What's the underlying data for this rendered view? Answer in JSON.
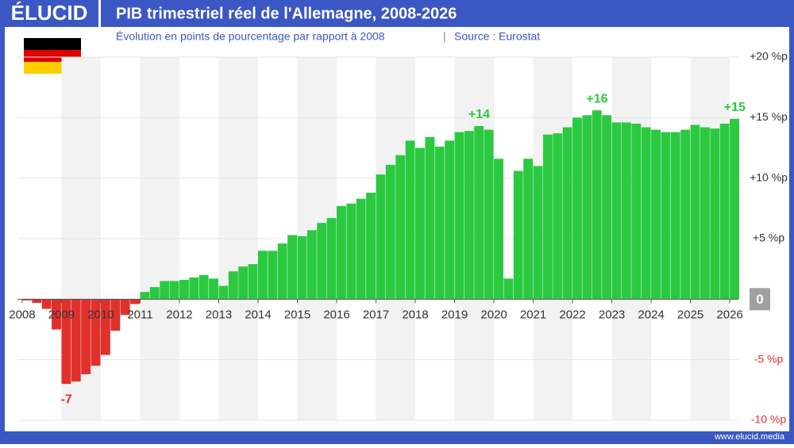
{
  "header": {
    "brand": "ÉLUCID"
  },
  "footer": {
    "website": "www.elucid.media"
  },
  "chart_data": {
    "type": "bar",
    "title": "PIB trimestriel réel de l'Allemagne, 2008-2026",
    "subtitle": "Évolution en points de pourcentage par rapport à 2008",
    "source": "Source : Eurostat",
    "x": [
      2008,
      2008.25,
      2008.5,
      2008.75,
      2009,
      2009.25,
      2009.5,
      2009.75,
      2010,
      2010.25,
      2010.5,
      2010.75,
      2011,
      2011.25,
      2011.5,
      2011.75,
      2012,
      2012.25,
      2012.5,
      2012.75,
      2013,
      2013.25,
      2013.5,
      2013.75,
      2014,
      2014.25,
      2014.5,
      2014.75,
      2015,
      2015.25,
      2015.5,
      2015.75,
      2016,
      2016.25,
      2016.5,
      2016.75,
      2017,
      2017.25,
      2017.5,
      2017.75,
      2018,
      2018.25,
      2018.5,
      2018.75,
      2019,
      2019.25,
      2019.5,
      2019.75,
      2020,
      2020.25,
      2020.5,
      2020.75,
      2021,
      2021.25,
      2021.5,
      2021.75,
      2022,
      2022.25,
      2022.5,
      2022.75,
      2023,
      2023.25,
      2023.5,
      2023.75,
      2024,
      2024.25,
      2024.5,
      2024.75,
      2025,
      2025.25,
      2025.5,
      2025.75,
      2026
    ],
    "values": [
      -0.1,
      -0.3,
      -0.8,
      -2.5,
      -7.0,
      -6.8,
      -6.2,
      -5.5,
      -4.6,
      -2.6,
      -1.3,
      -0.4,
      0.6,
      1.0,
      1.5,
      1.5,
      1.6,
      1.8,
      2.0,
      1.7,
      1.1,
      2.3,
      2.7,
      2.9,
      4.0,
      4.0,
      4.6,
      5.3,
      5.2,
      5.7,
      6.3,
      6.7,
      7.7,
      7.9,
      8.3,
      8.8,
      10.3,
      11.1,
      11.9,
      13.1,
      12.5,
      13.4,
      12.6,
      13.1,
      13.8,
      13.9,
      14.3,
      14.0,
      11.6,
      1.7,
      10.6,
      11.6,
      11.0,
      13.6,
      13.7,
      14.2,
      15.0,
      15.2,
      15.6,
      15.2,
      14.6,
      14.6,
      14.5,
      14.2,
      14.0,
      13.8,
      13.8,
      14.0,
      14.4,
      14.2,
      14.1,
      14.5,
      14.9
    ],
    "value_labels": [
      null,
      null,
      null,
      null,
      "-7",
      null,
      null,
      null,
      null,
      null,
      null,
      null,
      null,
      null,
      null,
      null,
      null,
      null,
      null,
      null,
      null,
      null,
      null,
      null,
      null,
      null,
      null,
      null,
      null,
      null,
      null,
      null,
      null,
      null,
      null,
      null,
      null,
      null,
      null,
      null,
      null,
      null,
      null,
      null,
      null,
      null,
      "+14",
      null,
      null,
      null,
      null,
      null,
      null,
      null,
      null,
      null,
      null,
      null,
      "+16",
      null,
      null,
      null,
      null,
      null,
      null,
      null,
      null,
      null,
      null,
      null,
      null,
      null,
      "+15"
    ],
    "colors": {
      "positive": "#2ac940",
      "negative": "#e0302b"
    },
    "xlim": [
      2007.88,
      2026.22
    ],
    "xticks": [
      2008,
      2009,
      2010,
      2011,
      2012,
      2013,
      2014,
      2015,
      2016,
      2017,
      2018,
      2019,
      2020,
      2021,
      2022,
      2023,
      2024,
      2025,
      2026
    ],
    "ylim": [
      -10,
      20
    ],
    "yticks": [
      {
        "value": 20,
        "label": "+20 %p"
      },
      {
        "value": 15,
        "label": "+15 %p"
      },
      {
        "value": 10,
        "label": "+10 %p"
      },
      {
        "value": 5,
        "label": "+5 %p"
      },
      0,
      {
        "value": -5,
        "label": "-5 %p"
      },
      {
        "value": -10,
        "label": "-10 %p"
      }
    ],
    "grid": true
  }
}
